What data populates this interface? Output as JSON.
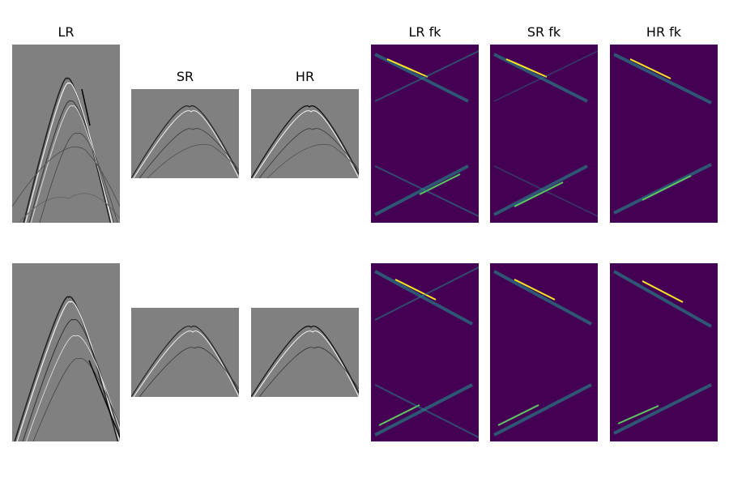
{
  "titles": {
    "lr": "LR",
    "sr": "SR",
    "hr": "HR",
    "lr_fk": "LR fk",
    "sr_fk": "SR fk",
    "hr_fk": "HR fk"
  },
  "colors": {
    "seismic_background": "#808080",
    "fk_background": "#440154",
    "fk_mid": "#21918c",
    "fk_high": "#5ec962",
    "fk_peak": "#fde725"
  }
}
